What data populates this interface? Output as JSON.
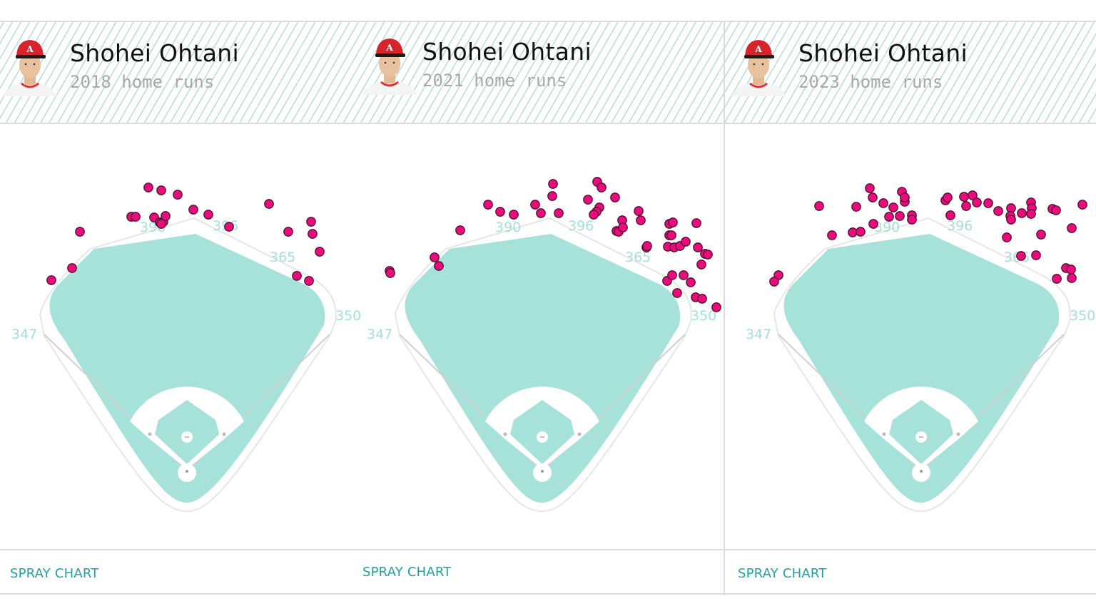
{
  "colors": {
    "grass": "#a6e1da",
    "dirt": "#ffffff",
    "hr_dot": "#ec0b7c",
    "hr_dot_stroke": "#4a1030",
    "distance_label": "#a5dfd8",
    "link": "#1ea3a0",
    "header_stripe": "#b9dcd8"
  },
  "panels": [
    {
      "player_name": "Shohei Ohtani",
      "subtitle": "2018 home runs",
      "footer_link": "SPRAY CHART",
      "distances": {
        "lf": "347",
        "lcf": "390",
        "cf": "396",
        "rcf": "365",
        "rf": "350"
      }
    },
    {
      "player_name": "Shohei Ohtani",
      "subtitle": "2021 home runs",
      "footer_link": "SPRAY CHART",
      "distances": {
        "lf": "347",
        "lcf": "390",
        "cf": "396",
        "rcf": "365",
        "rf": "350"
      }
    },
    {
      "player_name": "Shohei Ohtani",
      "subtitle": "2023 home runs",
      "footer_link": "SPRAY CHART",
      "distances": {
        "lf": "347",
        "lcf": "390",
        "cf": "396",
        "rcf": "365",
        "rf": "350"
      }
    }
  ],
  "chart_data": [
    {
      "type": "scatter",
      "title": "Shohei Ohtani 2018 home runs",
      "xlabel": "",
      "ylabel": "",
      "field_distances_ft": {
        "left_field": 347,
        "left_center": 390,
        "center": 396,
        "right_center": 365,
        "right_field": 350
      },
      "note": "points are pixel offsets from home plate (x right, y up)",
      "points": [
        [
          -190,
          268
        ],
        [
          -161,
          285
        ],
        [
          -150,
          336
        ],
        [
          -78,
          357
        ],
        [
          -72,
          357
        ],
        [
          -54,
          398
        ],
        [
          -36,
          394
        ],
        [
          -13,
          388
        ],
        [
          -46,
          356
        ],
        [
          -38,
          349
        ],
        [
          -33,
          350
        ],
        [
          -30,
          358
        ],
        [
          -36,
          347
        ],
        [
          9,
          367
        ],
        [
          30,
          360
        ],
        [
          59,
          343
        ],
        [
          115,
          375
        ],
        [
          142,
          336
        ],
        [
          174,
          350
        ],
        [
          176,
          333
        ],
        [
          186,
          308
        ],
        [
          154,
          274
        ],
        [
          171,
          267
        ]
      ]
    },
    {
      "type": "scatter",
      "title": "Shohei Ohtani 2021 home runs",
      "xlabel": "",
      "ylabel": "",
      "field_distances_ft": {
        "left_field": 347,
        "left_center": 390,
        "center": 396,
        "right_center": 365,
        "right_field": 350
      },
      "note": "points are pixel offsets from home plate (x right, y up)",
      "points": [
        [
          -214,
          281
        ],
        [
          -213,
          278
        ],
        [
          -151,
          300
        ],
        [
          -145,
          288
        ],
        [
          -115,
          338
        ],
        [
          -76,
          374
        ],
        [
          -59,
          364
        ],
        [
          -40,
          360
        ],
        [
          -10,
          374
        ],
        [
          -2,
          362
        ],
        [
          15,
          403
        ],
        [
          14,
          386
        ],
        [
          23,
          362
        ],
        [
          77,
          406
        ],
        [
          83,
          398
        ],
        [
          64,
          381
        ],
        [
          102,
          384
        ],
        [
          80,
          370
        ],
        [
          76,
          364
        ],
        [
          72,
          360
        ],
        [
          104,
          337
        ],
        [
          112,
          352
        ],
        [
          135,
          365
        ],
        [
          107,
          336
        ],
        [
          138,
          352
        ],
        [
          113,
          342
        ],
        [
          146,
          314
        ],
        [
          147,
          316
        ],
        [
          178,
          347
        ],
        [
          183,
          349
        ],
        [
          178,
          331
        ],
        [
          181,
          331
        ],
        [
          216,
          348
        ],
        [
          176,
          315
        ],
        [
          185,
          314
        ],
        [
          193,
          316
        ],
        [
          201,
          322
        ],
        [
          218,
          314
        ],
        [
          228,
          305
        ],
        [
          232,
          304
        ],
        [
          223,
          290
        ],
        [
          198,
          275
        ],
        [
          175,
          267
        ],
        [
          182,
          275
        ],
        [
          208,
          265
        ],
        [
          189,
          250
        ],
        [
          215,
          244
        ],
        [
          224,
          242
        ],
        [
          244,
          230
        ]
      ]
    },
    {
      "type": "scatter",
      "title": "Shohei Ohtani 2023 home runs",
      "xlabel": "",
      "ylabel": "",
      "field_distances_ft": {
        "left_field": 347,
        "left_center": 390,
        "center": 396,
        "right_center": 365,
        "right_field": 350
      },
      "note": "points are pixel offsets from home plate (x right, y up)",
      "points": [
        [
          -200,
          275
        ],
        [
          -206,
          266
        ],
        [
          -143,
          372
        ],
        [
          -125,
          331
        ],
        [
          -96,
          335
        ],
        [
          -85,
          336
        ],
        [
          -67,
          347
        ],
        [
          -91,
          371
        ],
        [
          -72,
          397
        ],
        [
          -68,
          384
        ],
        [
          -53,
          376
        ],
        [
          -39,
          370
        ],
        [
          -45,
          357
        ],
        [
          -30,
          358
        ],
        [
          -13,
          359
        ],
        [
          -13,
          353
        ],
        [
          -23,
          378
        ],
        [
          -27,
          392
        ],
        [
          -23,
          384
        ],
        [
          34,
          380
        ],
        [
          37,
          384
        ],
        [
          41,
          359
        ],
        [
          60,
          385
        ],
        [
          72,
          387
        ],
        [
          63,
          372
        ],
        [
          78,
          377
        ],
        [
          94,
          376
        ],
        [
          108,
          365
        ],
        [
          126,
          369
        ],
        [
          125,
          358
        ],
        [
          126,
          353
        ],
        [
          120,
          328
        ],
        [
          141,
          362
        ],
        [
          154,
          377
        ],
        [
          155,
          369
        ],
        [
          154,
          361
        ],
        [
          184,
          368
        ],
        [
          189,
          366
        ],
        [
          168,
          332
        ],
        [
          140,
          302
        ],
        [
          161,
          303
        ],
        [
          203,
          285
        ],
        [
          210,
          283
        ],
        [
          190,
          270
        ],
        [
          211,
          271
        ],
        [
          211,
          341
        ],
        [
          226,
          374
        ]
      ]
    }
  ]
}
